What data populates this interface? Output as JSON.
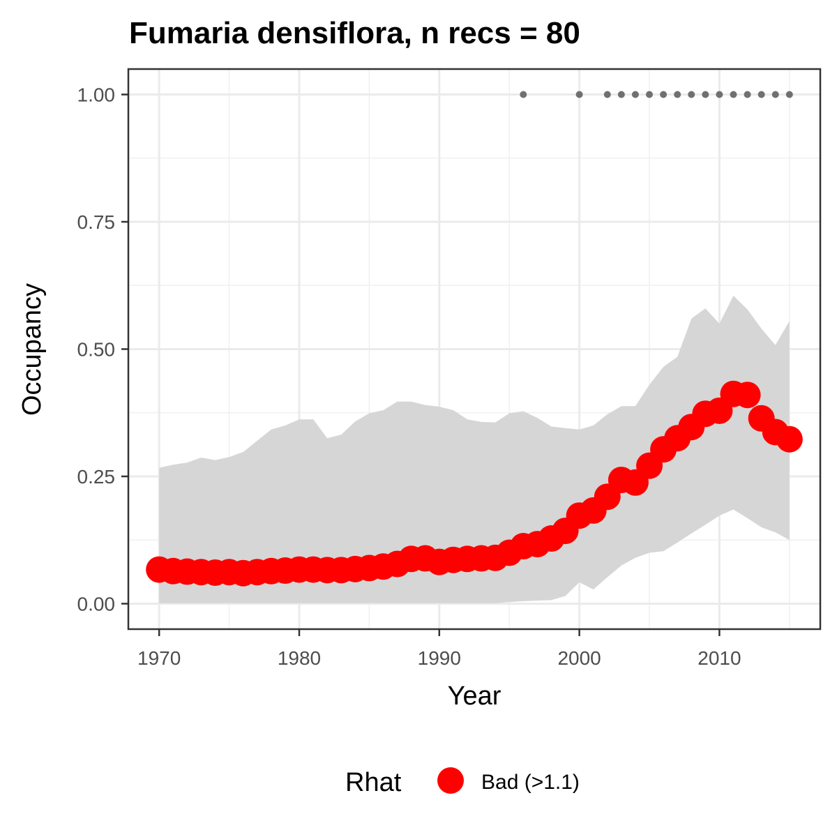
{
  "chart_data": {
    "type": "line",
    "title": "Fumaria densiflora, n recs = 80",
    "xlabel": "Year",
    "ylabel": "Occupancy",
    "xlim": [
      1967.8,
      2017.2
    ],
    "ylim": [
      -0.05,
      1.05
    ],
    "x_ticks": [
      1970,
      1980,
      1990,
      2000,
      2010
    ],
    "x_tick_labels": [
      "1970",
      "1980",
      "1990",
      "2000",
      "2010"
    ],
    "y_ticks": [
      0,
      0.25,
      0.5,
      0.75,
      1
    ],
    "y_tick_labels": [
      "0.00",
      "0.25",
      "0.50",
      "0.75",
      "1.00"
    ],
    "grid": true,
    "legend": {
      "position": "bottom",
      "title": "Rhat",
      "entries": [
        {
          "label": "Bad (>1.1)",
          "color": "#ff0000"
        }
      ]
    },
    "colors": {
      "points": "#ff0000",
      "ribbon": "#d6d6d6",
      "records": "#707070"
    },
    "x": [
      1970,
      1971,
      1972,
      1973,
      1974,
      1975,
      1976,
      1977,
      1978,
      1979,
      1980,
      1981,
      1982,
      1983,
      1984,
      1985,
      1986,
      1987,
      1988,
      1989,
      1990,
      1991,
      1992,
      1993,
      1994,
      1995,
      1996,
      1997,
      1998,
      1999,
      2000,
      2001,
      2002,
      2003,
      2004,
      2005,
      2006,
      2007,
      2008,
      2009,
      2010,
      2011,
      2012,
      2013,
      2014,
      2015
    ],
    "series": [
      {
        "name": "Occupancy",
        "values": [
          0.067,
          0.064,
          0.063,
          0.062,
          0.061,
          0.062,
          0.06,
          0.062,
          0.064,
          0.065,
          0.067,
          0.067,
          0.066,
          0.066,
          0.068,
          0.07,
          0.073,
          0.078,
          0.088,
          0.089,
          0.082,
          0.086,
          0.088,
          0.089,
          0.09,
          0.1,
          0.113,
          0.117,
          0.128,
          0.143,
          0.173,
          0.183,
          0.21,
          0.243,
          0.238,
          0.271,
          0.303,
          0.325,
          0.347,
          0.373,
          0.379,
          0.412,
          0.41,
          0.364,
          0.337,
          0.323
        ]
      }
    ],
    "ribbon": {
      "upper": [
        0.267,
        0.273,
        0.277,
        0.287,
        0.282,
        0.288,
        0.298,
        0.32,
        0.342,
        0.35,
        0.362,
        0.362,
        0.325,
        0.332,
        0.358,
        0.374,
        0.38,
        0.397,
        0.397,
        0.39,
        0.387,
        0.38,
        0.362,
        0.357,
        0.356,
        0.374,
        0.378,
        0.365,
        0.348,
        0.345,
        0.342,
        0.35,
        0.372,
        0.388,
        0.388,
        0.43,
        0.465,
        0.485,
        0.56,
        0.58,
        0.55,
        0.605,
        0.578,
        0.54,
        0.508,
        0.555
      ],
      "lower": [
        0.001,
        0.001,
        0.001,
        0.001,
        0.001,
        0.001,
        0.001,
        0.001,
        0.001,
        0.001,
        0.001,
        0.001,
        0.001,
        0.001,
        0.001,
        0.001,
        0.001,
        0.001,
        0.001,
        0.001,
        0.001,
        0.001,
        0.001,
        0.001,
        0.001,
        0.003,
        0.005,
        0.006,
        0.007,
        0.015,
        0.042,
        0.028,
        0.052,
        0.075,
        0.09,
        0.1,
        0.103,
        0.12,
        0.138,
        0.155,
        0.173,
        0.185,
        0.168,
        0.15,
        0.14,
        0.125
      ]
    },
    "record_years": [
      1996,
      2000,
      2002,
      2003,
      2004,
      2005,
      2006,
      2007,
      2008,
      2009,
      2010,
      2011,
      2012,
      2013,
      2014,
      2015
    ],
    "record_value": 1
  }
}
